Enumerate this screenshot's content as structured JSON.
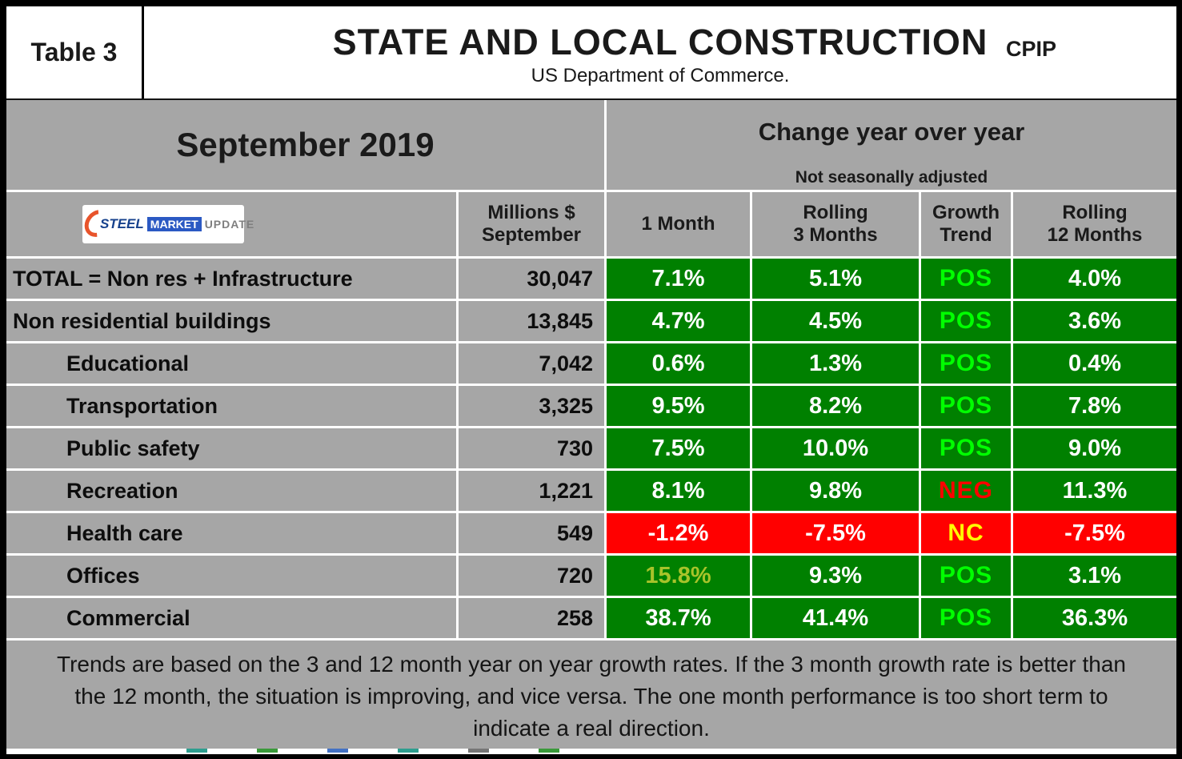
{
  "header": {
    "table_label": "Table 3",
    "title": "STATE AND LOCAL CONSTRUCTION",
    "tag": "CPIP",
    "subtitle": "US Department of Commerce."
  },
  "period": {
    "month": "September 2019",
    "change_title": "Change year over year",
    "change_note": "Not seasonally adjusted"
  },
  "logo": {
    "steel": "STEEL",
    "market": "MARKET",
    "update": "UPDATE"
  },
  "columns": [
    "Millions $\nSeptember",
    "1 Month",
    "Rolling\n3 Months",
    "Growth\nTrend",
    "Rolling\n12 Months"
  ],
  "colors": {
    "green": "#008000",
    "red": "#ff0000",
    "lime": "#00ff00",
    "yellow": "#ffff00",
    "yellowgreen": "#a8c32a",
    "white": "#ffffff",
    "gray": "#a6a6a6"
  },
  "rows": [
    {
      "label": "TOTAL = Non res + Infrastructure",
      "indent": false,
      "millions": "30,047",
      "cells": [
        {
          "value": "7.1%",
          "bg": "green",
          "fg": "white"
        },
        {
          "value": "5.1%",
          "bg": "green",
          "fg": "white"
        },
        {
          "value": "POS",
          "bg": "green",
          "fg": "lime"
        },
        {
          "value": "4.0%",
          "bg": "green",
          "fg": "white"
        }
      ]
    },
    {
      "label": "Non residential buildings",
      "indent": false,
      "millions": "13,845",
      "cells": [
        {
          "value": "4.7%",
          "bg": "green",
          "fg": "white"
        },
        {
          "value": "4.5%",
          "bg": "green",
          "fg": "white"
        },
        {
          "value": "POS",
          "bg": "green",
          "fg": "lime"
        },
        {
          "value": "3.6%",
          "bg": "green",
          "fg": "white"
        }
      ]
    },
    {
      "label": "Educational",
      "indent": true,
      "millions": "7,042",
      "cells": [
        {
          "value": "0.6%",
          "bg": "green",
          "fg": "white"
        },
        {
          "value": "1.3%",
          "bg": "green",
          "fg": "white"
        },
        {
          "value": "POS",
          "bg": "green",
          "fg": "lime"
        },
        {
          "value": "0.4%",
          "bg": "green",
          "fg": "white"
        }
      ]
    },
    {
      "label": "Transportation",
      "indent": true,
      "millions": "3,325",
      "cells": [
        {
          "value": "9.5%",
          "bg": "green",
          "fg": "white"
        },
        {
          "value": "8.2%",
          "bg": "green",
          "fg": "white"
        },
        {
          "value": "POS",
          "bg": "green",
          "fg": "lime"
        },
        {
          "value": "7.8%",
          "bg": "green",
          "fg": "white"
        }
      ]
    },
    {
      "label": "Public safety",
      "indent": true,
      "millions": "730",
      "cells": [
        {
          "value": "7.5%",
          "bg": "green",
          "fg": "white"
        },
        {
          "value": "10.0%",
          "bg": "green",
          "fg": "white"
        },
        {
          "value": "POS",
          "bg": "green",
          "fg": "lime"
        },
        {
          "value": "9.0%",
          "bg": "green",
          "fg": "white"
        }
      ]
    },
    {
      "label": "Recreation",
      "indent": true,
      "millions": "1,221",
      "cells": [
        {
          "value": "8.1%",
          "bg": "green",
          "fg": "white"
        },
        {
          "value": "9.8%",
          "bg": "green",
          "fg": "white"
        },
        {
          "value": "NEG",
          "bg": "green",
          "fg": "red"
        },
        {
          "value": "11.3%",
          "bg": "green",
          "fg": "white"
        }
      ]
    },
    {
      "label": "Health care",
      "indent": true,
      "millions": "549",
      "cells": [
        {
          "value": "-1.2%",
          "bg": "red",
          "fg": "white"
        },
        {
          "value": "-7.5%",
          "bg": "red",
          "fg": "white"
        },
        {
          "value": "NC",
          "bg": "red",
          "fg": "yellow"
        },
        {
          "value": "-7.5%",
          "bg": "red",
          "fg": "white"
        }
      ]
    },
    {
      "label": "Offices",
      "indent": true,
      "millions": "720",
      "cells": [
        {
          "value": "15.8%",
          "bg": "green",
          "fg": "yellowgreen"
        },
        {
          "value": "9.3%",
          "bg": "green",
          "fg": "white"
        },
        {
          "value": "POS",
          "bg": "green",
          "fg": "lime"
        },
        {
          "value": "3.1%",
          "bg": "green",
          "fg": "white"
        }
      ]
    },
    {
      "label": "Commercial",
      "indent": true,
      "millions": "258",
      "cells": [
        {
          "value": "38.7%",
          "bg": "green",
          "fg": "white"
        },
        {
          "value": "41.4%",
          "bg": "green",
          "fg": "white"
        },
        {
          "value": "POS",
          "bg": "green",
          "fg": "lime"
        },
        {
          "value": "36.3%",
          "bg": "green",
          "fg": "white"
        }
      ]
    }
  ],
  "footer": {
    "text": "Trends are based on the 3 and 12 month year on year growth rates. If the 3 month growth rate is better than the 12 month, the situation is improving, and vice versa. The one month performance is too short term to indicate a real direction."
  },
  "chart_data": {
    "type": "table",
    "title": "STATE AND LOCAL CONSTRUCTION",
    "subtitle": "US Department of Commerce.",
    "period": "September 2019",
    "note": "Change year over year — Not seasonally adjusted",
    "columns": [
      "Category",
      "Millions $ September",
      "1 Month",
      "Rolling 3 Months",
      "Growth Trend",
      "Rolling 12 Months"
    ],
    "rows": [
      [
        "TOTAL = Non res + Infrastructure",
        30047,
        "7.1%",
        "5.1%",
        "POS",
        "4.0%"
      ],
      [
        "Non residential buildings",
        13845,
        "4.7%",
        "4.5%",
        "POS",
        "3.6%"
      ],
      [
        "Educational",
        7042,
        "0.6%",
        "1.3%",
        "POS",
        "0.4%"
      ],
      [
        "Transportation",
        3325,
        "9.5%",
        "8.2%",
        "POS",
        "7.8%"
      ],
      [
        "Public safety",
        730,
        "7.5%",
        "10.0%",
        "POS",
        "9.0%"
      ],
      [
        "Recreation",
        1221,
        "8.1%",
        "9.8%",
        "NEG",
        "11.3%"
      ],
      [
        "Health care",
        549,
        "-1.2%",
        "-7.5%",
        "NC",
        "-7.5%"
      ],
      [
        "Offices",
        720,
        "15.8%",
        "9.3%",
        "POS",
        "3.1%"
      ],
      [
        "Commercial",
        258,
        "38.7%",
        "41.4%",
        "POS",
        "36.3%"
      ]
    ]
  }
}
